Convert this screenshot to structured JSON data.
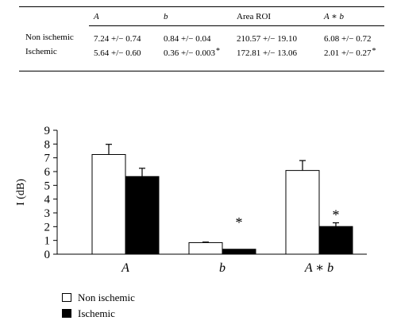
{
  "table": {
    "headers": [
      "",
      "A",
      "b",
      "Area ROI",
      "A ∗ b"
    ],
    "header_italic": [
      false,
      true,
      true,
      false,
      true
    ],
    "rows": [
      {
        "label": "Non ischemic",
        "cells": [
          {
            "text": "7.24 +/− 0.74",
            "star": ""
          },
          {
            "text": "0.84 +/− 0.04",
            "star": ""
          },
          {
            "text": "210.57 +/− 19.10",
            "star": ""
          },
          {
            "text": "6.08 +/− 0.72",
            "star": ""
          }
        ]
      },
      {
        "label": "Ischemic",
        "cells": [
          {
            "text": "5.64 +/− 0.60",
            "star": ""
          },
          {
            "text": "0.36 +/− 0.003",
            "star": "*"
          },
          {
            "text": "172.81 +/− 13.06",
            "star": ""
          },
          {
            "text": "2.01 +/− 0.27",
            "star": "*"
          }
        ]
      }
    ]
  },
  "chart_data": {
    "type": "bar",
    "title": "",
    "xlabel": "",
    "ylabel": "I (dB)",
    "ylim": [
      0,
      9
    ],
    "yticks": [
      "0",
      "1",
      "2",
      "3",
      "4",
      "5",
      "6",
      "7",
      "8",
      "9"
    ],
    "categories": [
      "A",
      "b",
      "A ∗ b"
    ],
    "series": [
      {
        "name": "Non ischemic",
        "color": "#ffffff",
        "values": [
          7.24,
          0.84,
          6.08
        ],
        "errors": [
          0.74,
          0.04,
          0.72
        ]
      },
      {
        "name": "Ischemic",
        "color": "#000000",
        "values": [
          5.64,
          0.36,
          2.01
        ],
        "errors": [
          0.6,
          0.003,
          0.27
        ]
      }
    ],
    "annotations": [
      {
        "category_index": 1,
        "text": "*"
      },
      {
        "category_index": 2,
        "text": "*"
      }
    ],
    "legend_position": "bottom-left",
    "grid": false
  }
}
